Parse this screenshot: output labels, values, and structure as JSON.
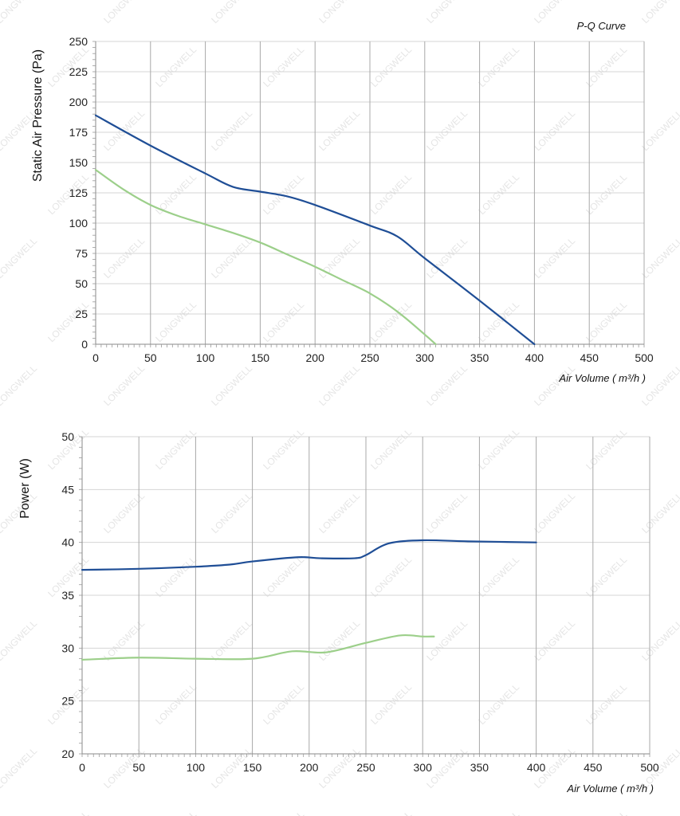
{
  "chart_data": [
    {
      "type": "line",
      "title": "P-Q Curve",
      "xlabel": "Air Volume ( m³/h )",
      "ylabel": "Static Air Pressure  (Pa)",
      "xlim": [
        0,
        500
      ],
      "ylim": [
        0,
        250
      ],
      "xticks": [
        "0",
        "50",
        "100",
        "150",
        "200",
        "250",
        "300",
        "350",
        "400",
        "450",
        "500"
      ],
      "yticks": [
        "0",
        "25",
        "50",
        "75",
        "100",
        "125",
        "150",
        "175",
        "200",
        "225",
        "250"
      ],
      "grid": true,
      "series": [
        {
          "color": "#1f4e96",
          "x": [
            0,
            50,
            100,
            125,
            150,
            175,
            200,
            250,
            275,
            300,
            350,
            400
          ],
          "y": [
            189,
            164,
            141,
            130,
            126,
            122,
            115,
            98,
            89,
            71,
            36,
            0
          ]
        },
        {
          "color": "#9ccf8a",
          "x": [
            0,
            25,
            50,
            75,
            100,
            125,
            150,
            175,
            200,
            225,
            250,
            275,
            300,
            310
          ],
          "y": [
            144,
            128,
            115,
            106,
            99,
            92,
            84,
            74,
            64,
            53,
            42,
            27,
            8,
            0
          ]
        }
      ]
    },
    {
      "type": "line",
      "title": "",
      "xlabel": "Air Volume ( m³/h )",
      "ylabel": "Power  (W)",
      "xlim": [
        0,
        500
      ],
      "ylim": [
        20,
        50
      ],
      "xticks": [
        "0",
        "50",
        "100",
        "150",
        "200",
        "250",
        "300",
        "350",
        "400",
        "450",
        "500"
      ],
      "yticks": [
        "20",
        "25",
        "30",
        "35",
        "40",
        "45",
        "50"
      ],
      "grid": true,
      "series": [
        {
          "color": "#1f4e96",
          "x": [
            0,
            50,
            100,
            130,
            150,
            190,
            210,
            240,
            250,
            270,
            300,
            340,
            400
          ],
          "y": [
            37.4,
            37.5,
            37.7,
            37.9,
            38.2,
            38.6,
            38.5,
            38.5,
            38.8,
            39.9,
            40.2,
            40.1,
            40.0
          ]
        },
        {
          "color": "#9ccf8a",
          "x": [
            0,
            50,
            100,
            150,
            185,
            215,
            250,
            280,
            300,
            310
          ],
          "y": [
            28.9,
            29.1,
            29.0,
            29.0,
            29.7,
            29.6,
            30.5,
            31.2,
            31.1,
            31.1
          ]
        }
      ]
    }
  ],
  "watermark": "LONGWELL"
}
